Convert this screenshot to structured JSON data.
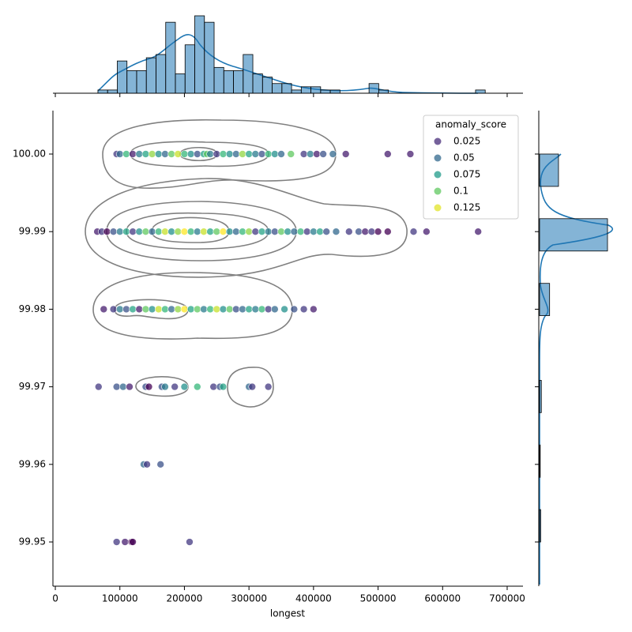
{
  "chart_data": {
    "type": "scatter",
    "xlabel": "longest",
    "xlim": [
      -3700,
      724500
    ],
    "ylim": [
      99.9443,
      100.0056
    ],
    "xticks": [
      0,
      100000,
      200000,
      300000,
      400000,
      500000,
      600000,
      700000
    ],
    "yticks": [
      {
        "value": 100,
        "label": "100.00"
      },
      99.99,
      99.98,
      99.97,
      99.96,
      99.95
    ],
    "palette": [
      "#440154",
      "#482878",
      "#3e4989",
      "#31688e",
      "#26828e",
      "#1f9e89",
      "#35b779",
      "#6ece58",
      "#b5de2b",
      "#fde725"
    ],
    "legend": {
      "title": "anomaly_score",
      "values": [
        0.025,
        0.05,
        0.075,
        0.1,
        0.125
      ],
      "loc": "upper right"
    },
    "rows": [
      {
        "y": 100,
        "x": [
          95000,
          100000,
          110000,
          120000,
          130000,
          140000,
          150000,
          160000,
          170000,
          180000,
          190000,
          200000,
          210000,
          220000,
          230000,
          235000,
          240000,
          250000,
          260000,
          270000,
          280000,
          290000,
          300000,
          310000,
          320000,
          330000,
          340000,
          350000,
          365000,
          385000,
          395000,
          405000,
          415000,
          430000,
          450000,
          515000,
          550000
        ],
        "hue": [
          0.03,
          0.05,
          0.09,
          0.02,
          0.06,
          0.08,
          0.11,
          0.07,
          0.05,
          0.1,
          0.12,
          0.09,
          0.07,
          0.04,
          0.08,
          0.1,
          0.06,
          0.03,
          0.09,
          0.07,
          0.05,
          0.11,
          0.08,
          0.06,
          0.04,
          0.09,
          0.07,
          0.05,
          0.1,
          0.03,
          0.06,
          0.02,
          0.04,
          0.05,
          0.02,
          0.02,
          0.02
        ]
      },
      {
        "y": 99.99,
        "x": [
          65000,
          72000,
          80000,
          90000,
          100000,
          110000,
          120000,
          130000,
          140000,
          150000,
          160000,
          170000,
          180000,
          190000,
          200000,
          210000,
          220000,
          230000,
          240000,
          250000,
          260000,
          270000,
          280000,
          290000,
          300000,
          310000,
          320000,
          330000,
          340000,
          350000,
          360000,
          370000,
          380000,
          390000,
          400000,
          410000,
          420000,
          435000,
          455000,
          470000,
          480000,
          490000,
          500000,
          515000,
          555000,
          575000,
          655000
        ],
        "hue": [
          0.02,
          0.03,
          0.01,
          0.04,
          0.06,
          0.08,
          0.03,
          0.07,
          0.1,
          0.05,
          0.09,
          0.12,
          0.07,
          0.11,
          0.13,
          0.09,
          0.06,
          0.12,
          0.08,
          0.1,
          0.13,
          0.07,
          0.05,
          0.09,
          0.11,
          0.03,
          0.08,
          0.06,
          0.04,
          0.1,
          0.07,
          0.05,
          0.09,
          0.03,
          0.06,
          0.08,
          0.04,
          0.05,
          0.03,
          0.04,
          0.02,
          0.03,
          0.01,
          0.01,
          0.03,
          0.02,
          0.02
        ]
      },
      {
        "y": 99.98,
        "x": [
          75000,
          90000,
          100000,
          110000,
          120000,
          130000,
          140000,
          150000,
          160000,
          170000,
          180000,
          190000,
          200000,
          210000,
          220000,
          230000,
          240000,
          250000,
          260000,
          270000,
          280000,
          290000,
          300000,
          310000,
          320000,
          330000,
          340000,
          355000,
          370000,
          385000,
          400000
        ],
        "hue": [
          0.02,
          0.03,
          0.06,
          0.04,
          0.08,
          0.02,
          0.1,
          0.07,
          0.12,
          0.09,
          0.05,
          0.11,
          0.13,
          0.08,
          0.1,
          0.06,
          0.09,
          0.12,
          0.07,
          0.1,
          0.04,
          0.05,
          0.08,
          0.06,
          0.09,
          0.03,
          0.05,
          0.07,
          0.04,
          0.03,
          0.02
        ]
      },
      {
        "y": 99.97,
        "x": [
          67000,
          95000,
          105000,
          115000,
          140000,
          145000,
          165000,
          170000,
          185000,
          200000,
          220000,
          245000,
          255000,
          260000,
          300000,
          305000,
          330000
        ],
        "hue": [
          0.03,
          0.04,
          0.05,
          0.02,
          0.04,
          0.01,
          0.04,
          0.06,
          0.03,
          0.07,
          0.09,
          0.03,
          0.04,
          0.08,
          0.05,
          0.03,
          0.03
        ]
      },
      {
        "y": 99.96,
        "x": [
          137000,
          142000,
          163000
        ],
        "hue": [
          0.05,
          0.03,
          0.04
        ]
      },
      {
        "y": 99.95,
        "x": [
          95000,
          108000,
          118000,
          120000,
          208000
        ],
        "hue": [
          0.03,
          0.02,
          0.01,
          0.01,
          0.03
        ]
      }
    ],
    "marginal_x": {
      "type": "histogram",
      "color": "#1f77b4",
      "bins": [
        66000,
        81000,
        96000,
        111000,
        126000,
        141000,
        156000,
        171000,
        186000,
        201000,
        216000,
        231000,
        246000,
        261000,
        276000,
        291000,
        306000,
        321000,
        336000,
        351000,
        366000,
        381000,
        396000,
        411000,
        426000,
        441000,
        456000,
        471000,
        486000,
        501000,
        516000,
        531000,
        546000,
        561000,
        576000,
        591000,
        606000,
        621000,
        636000,
        651000,
        666000
      ],
      "counts": [
        1,
        1,
        10,
        7,
        7,
        11,
        12,
        22,
        6,
        15,
        24,
        22,
        8,
        7,
        7,
        12,
        6,
        5,
        3,
        3,
        1,
        2,
        2,
        1,
        1,
        0,
        0,
        0,
        3,
        1,
        0,
        0,
        0,
        0,
        0,
        0,
        0,
        0,
        0,
        1
      ]
    },
    "marginal_y": {
      "type": "histogram",
      "color": "#1f77b4",
      "bins": [
        99.95,
        99.95417,
        99.95833,
        99.9625,
        99.96667,
        99.97083,
        99.975,
        99.97917,
        99.98333,
        99.9875,
        99.99167,
        99.99583,
        100.0
      ],
      "counts": [
        5,
        0,
        3,
        0,
        8,
        0,
        0,
        45,
        0,
        305,
        0,
        85
      ]
    }
  }
}
